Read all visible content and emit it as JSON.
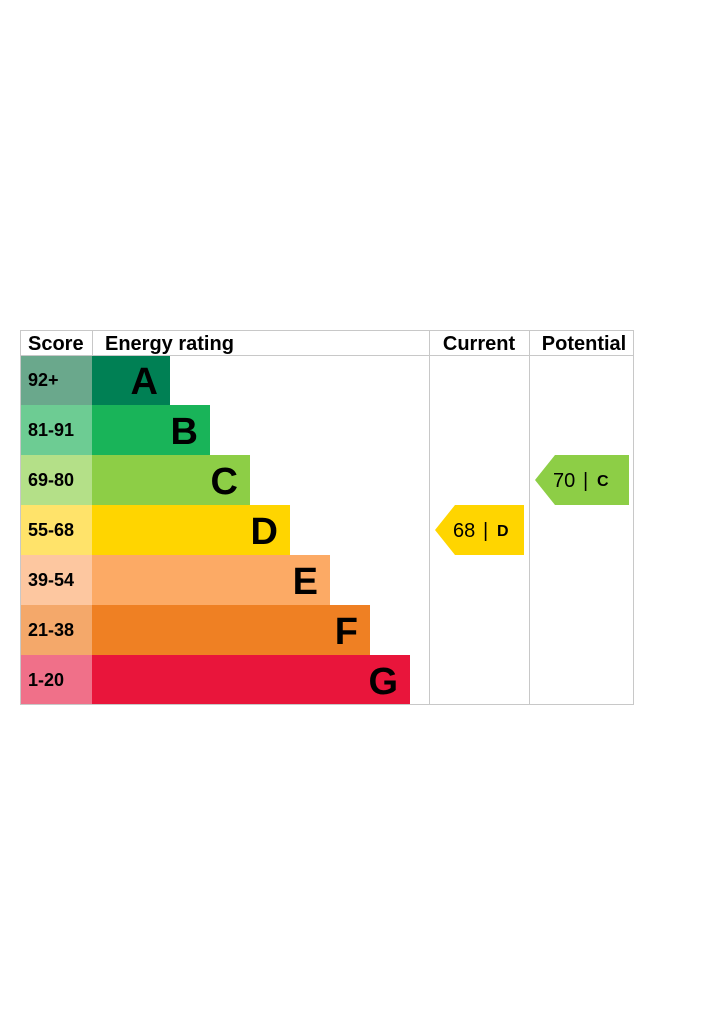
{
  "chart_data": {
    "type": "bar",
    "headers": {
      "score": "Score",
      "energy_rating": "Energy rating",
      "current": "Current",
      "potential": "Potential"
    },
    "bands": [
      {
        "letter": "A",
        "score_range": "92+",
        "color": "#008054",
        "score_color": "#6aa88c"
      },
      {
        "letter": "B",
        "score_range": "81-91",
        "color": "#19b459",
        "score_color": "#6dcc93"
      },
      {
        "letter": "C",
        "score_range": "69-80",
        "color": "#8dce46",
        "score_color": "#b4e088"
      },
      {
        "letter": "D",
        "score_range": "55-68",
        "color": "#ffd500",
        "score_color": "#ffe36a"
      },
      {
        "letter": "E",
        "score_range": "39-54",
        "color": "#fcaa65",
        "score_color": "#fdc7a0"
      },
      {
        "letter": "F",
        "score_range": "21-38",
        "color": "#ef8023",
        "score_color": "#f4a86a"
      },
      {
        "letter": "G",
        "score_range": "1-20",
        "color": "#e9153b",
        "score_color": "#f07089"
      }
    ],
    "current": {
      "value": 68,
      "band": "D",
      "separator": "|",
      "color": "#ffd500"
    },
    "potential": {
      "value": 70,
      "band": "C",
      "separator": "|",
      "color": "#8dce46"
    }
  }
}
